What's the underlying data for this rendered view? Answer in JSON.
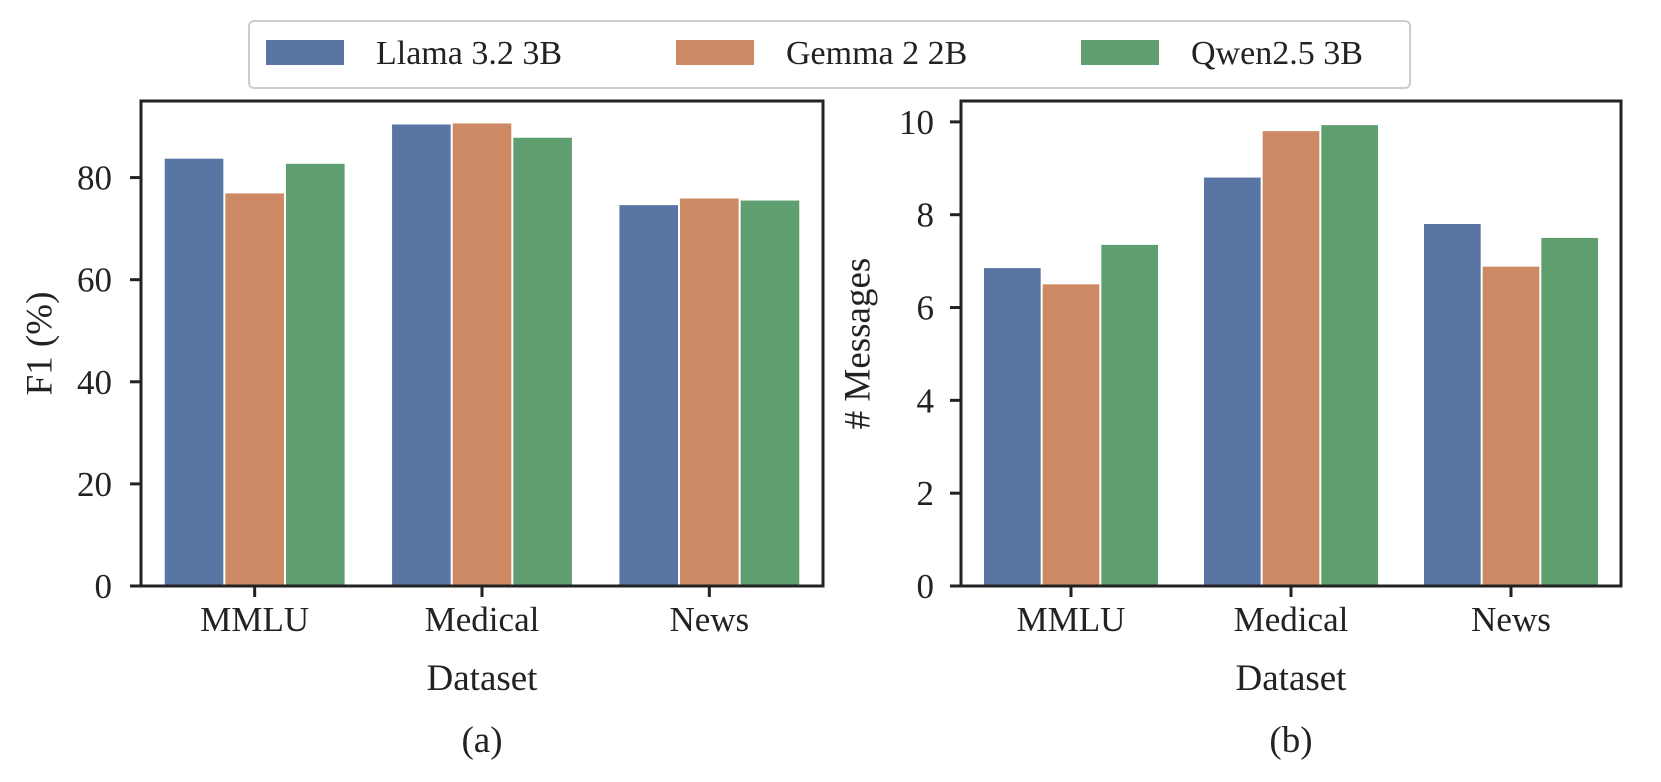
{
  "legend": {
    "entries": [
      {
        "label": "Llama 3.2 3B",
        "color": "#5875a4"
      },
      {
        "label": "Gemma 2 2B",
        "color": "#cc8963"
      },
      {
        "label": "Qwen2.5 3B",
        "color": "#5f9e6e"
      }
    ]
  },
  "chart_data": [
    {
      "type": "bar",
      "panel_label": "(a)",
      "title": "",
      "xlabel": "Dataset",
      "ylabel": "F1 (%)",
      "categories": [
        "MMLU",
        "Medical",
        "News"
      ],
      "ylim": [
        0,
        95
      ],
      "yticks": [
        0,
        20,
        40,
        60,
        80
      ],
      "ytick_labels": [
        "0",
        "20",
        "40",
        "60",
        "80"
      ],
      "series": [
        {
          "name": "Llama 3.2 3B",
          "values": [
            83.7,
            90.4,
            74.6
          ]
        },
        {
          "name": "Gemma 2 2B",
          "values": [
            76.9,
            90.6,
            75.9
          ]
        },
        {
          "name": "Qwen2.5 3B",
          "values": [
            82.7,
            87.8,
            75.5
          ]
        }
      ]
    },
    {
      "type": "bar",
      "panel_label": "(b)",
      "title": "",
      "xlabel": "Dataset",
      "ylabel": "# Messages",
      "categories": [
        "MMLU",
        "Medical",
        "News"
      ],
      "ylim": [
        0,
        10.45
      ],
      "yticks": [
        0,
        2,
        4,
        6,
        8,
        10
      ],
      "ytick_labels": [
        "0",
        "2",
        "4",
        "6",
        "8",
        "10"
      ],
      "series": [
        {
          "name": "Llama 3.2 3B",
          "values": [
            6.85,
            8.8,
            7.8
          ]
        },
        {
          "name": "Gemma 2 2B",
          "values": [
            6.5,
            9.8,
            6.88
          ]
        },
        {
          "name": "Qwen2.5 3B",
          "values": [
            7.35,
            9.93,
            7.5
          ]
        }
      ]
    }
  ]
}
